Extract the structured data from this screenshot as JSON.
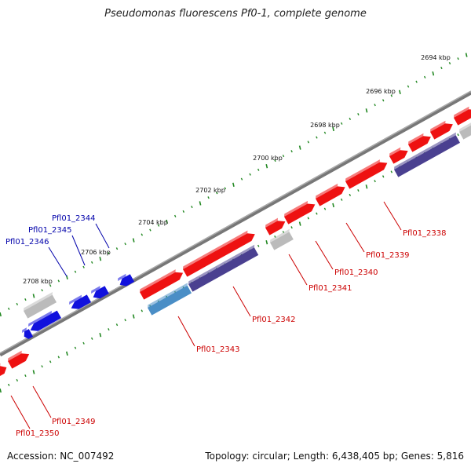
{
  "title": "Pseudomonas fluorescens Pf0-1, complete genome",
  "footer": {
    "accession": "Accession: NC_007492",
    "summary": "Topology: circular; Length: 6,438,405 bp; Genes: 5,816"
  },
  "colors": {
    "forward": "#ee1111",
    "reverse": "#1111dd",
    "pseudo": "#bbbbbb",
    "cds_dark": "#4a4090",
    "cds_light": "#4a8ec6",
    "backbone": "#777777",
    "ticks": "#228822",
    "label_red": "#cc0000",
    "label_blue": "#0000aa"
  },
  "tick_labels": [
    "2694 kbp",
    "2696 kbp",
    "2698 kbp",
    "2700 kbp",
    "2702 kbp",
    "2704 kbp",
    "2706 kbp",
    "2708 kbp"
  ],
  "gene_labels": [
    {
      "text": "Pfl01_2338",
      "color": "red"
    },
    {
      "text": "Pfl01_2339",
      "color": "red"
    },
    {
      "text": "Pfl01_2340",
      "color": "red"
    },
    {
      "text": "Pfl01_2341",
      "color": "red"
    },
    {
      "text": "Pfl01_2342",
      "color": "red"
    },
    {
      "text": "Pfl01_2343",
      "color": "red"
    },
    {
      "text": "Pfl01_2344",
      "color": "blue"
    },
    {
      "text": "Pfl01_2345",
      "color": "blue"
    },
    {
      "text": "Pfl01_2346",
      "color": "blue"
    },
    {
      "text": "Pfl01_2349",
      "color": "red"
    },
    {
      "text": "Pfl01_2350",
      "color": "red"
    }
  ]
}
